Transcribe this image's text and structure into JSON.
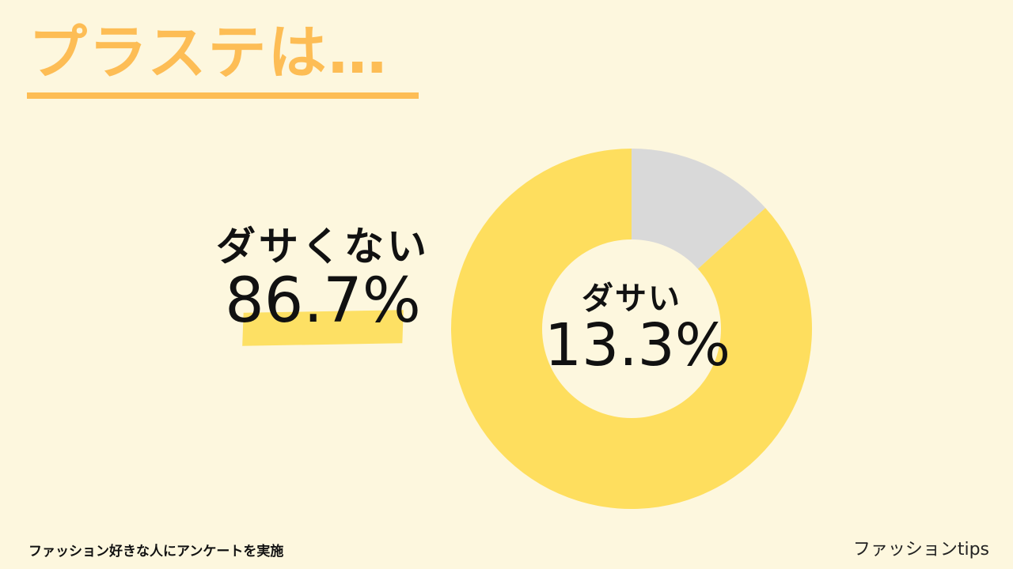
{
  "header": {
    "title": "プラステは…"
  },
  "chart_data": {
    "type": "pie",
    "style": "donut",
    "start": "top",
    "direction": "clockwise",
    "slices": [
      {
        "label": "ダサい",
        "value": 13.3,
        "value_label": "13.3%",
        "color": "#d9d9d9"
      },
      {
        "label": "ダサくない",
        "value": 86.7,
        "value_label": "86.7%",
        "color": "#fede5e"
      }
    ]
  },
  "colors": {
    "background": "#fdf7de",
    "accent": "#fdbd55",
    "highlight": "#fde064"
  },
  "footer": {
    "note": "ファッション好きな人にアンケートを実施",
    "brand": "ファッションtips"
  }
}
